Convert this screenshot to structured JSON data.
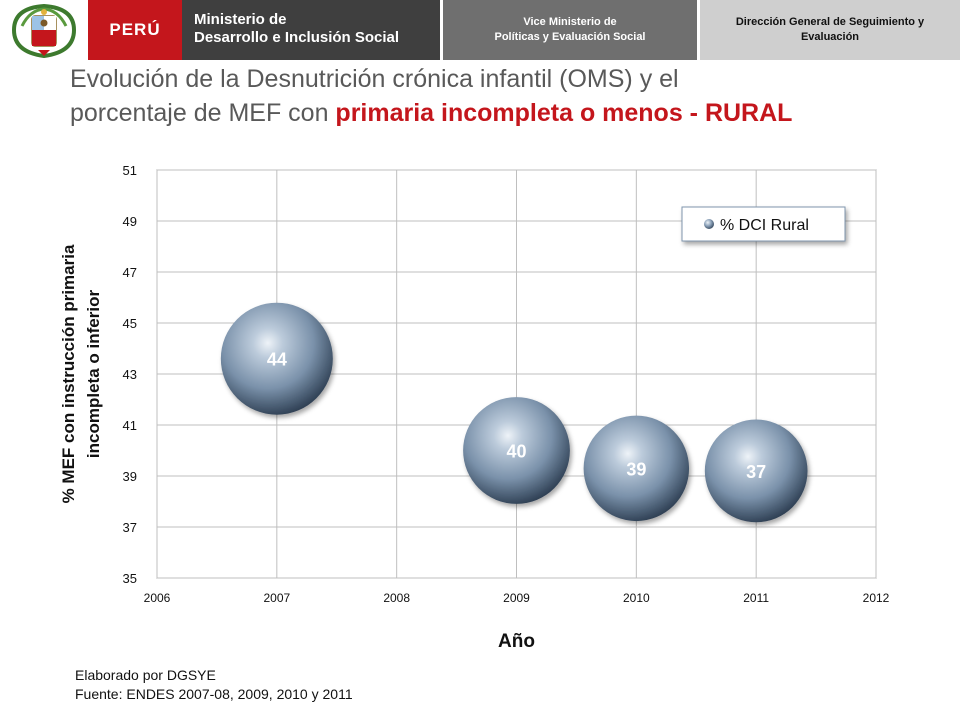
{
  "header": {
    "country": "PERÚ",
    "ministry_line1": "Ministerio de",
    "ministry_line2": "Desarrollo e Inclusión Social",
    "vice_line1": "Vice Ministerio de",
    "vice_line2": "Políticas y Evaluación Social",
    "dir_line1": "Dirección General de Seguimiento y",
    "dir_line2": "Evaluación"
  },
  "title": {
    "line1": "Evolución de la Desnutrición crónica infantil (OMS) y el",
    "line2_prefix": "porcentaje de MEF con ",
    "line2_highlight": "primaria incompleta o menos - RURAL"
  },
  "footer": {
    "line1": "Elaborado por DGSYE",
    "line2": "Fuente: ENDES 2007-08, 2009, 2010 y 2011"
  },
  "colors": {
    "peru_red": "#c4161c",
    "bubble": "#7f95ad",
    "grid": "#bfbfbf"
  },
  "chart_data": {
    "type": "scatter",
    "subtype": "bubble",
    "title": "",
    "xlabel": "Año",
    "ylabel_line1": "% MEF con instrucción primaria",
    "ylabel_line2": "incompleta o inferior",
    "xlim": [
      2006,
      2012
    ],
    "ylim": [
      35,
      51
    ],
    "xticks": [
      2006,
      2007,
      2008,
      2009,
      2010,
      2011,
      2012
    ],
    "yticks": [
      35,
      37,
      39,
      41,
      43,
      45,
      47,
      49,
      51
    ],
    "grid": true,
    "legend": {
      "position": "top-right",
      "entries": [
        "% DCI Rural"
      ]
    },
    "series": [
      {
        "name": "% DCI Rural",
        "points": [
          {
            "x": 2007,
            "y": 43.6,
            "size": 44,
            "label": "44"
          },
          {
            "x": 2009,
            "y": 40.0,
            "size": 40,
            "label": "40"
          },
          {
            "x": 2010,
            "y": 39.3,
            "size": 39,
            "label": "39"
          },
          {
            "x": 2011,
            "y": 39.2,
            "size": 37,
            "label": "37"
          }
        ]
      }
    ]
  }
}
